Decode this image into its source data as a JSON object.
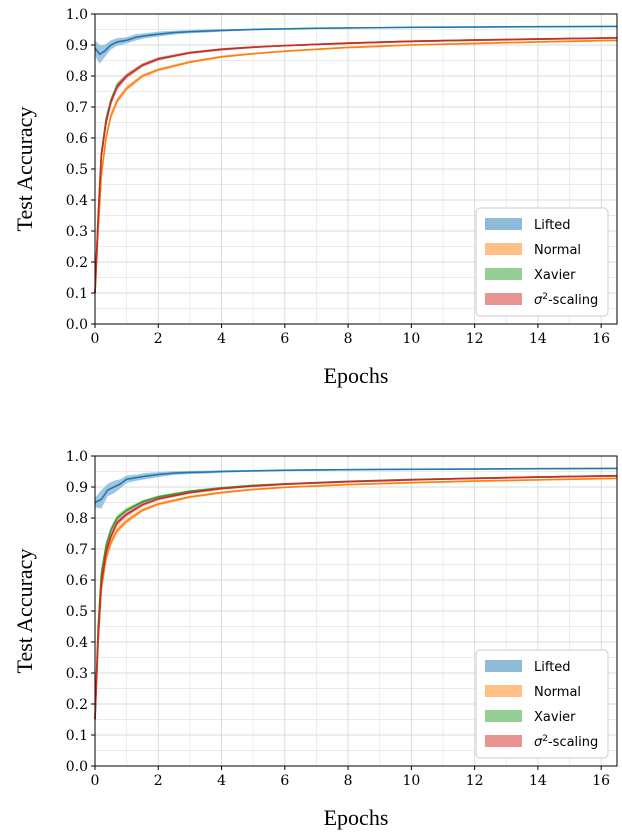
{
  "chart_data": [
    {
      "type": "line",
      "xlabel": "Epochs",
      "ylabel": "Test Accuracy",
      "xlim": [
        0,
        16.5
      ],
      "ylim": [
        0,
        1.0
      ],
      "xticks": [
        "0",
        "2",
        "4",
        "6",
        "8",
        "10",
        "12",
        "14",
        "16"
      ],
      "yticks": [
        "0.0",
        "0.1",
        "0.2",
        "0.3",
        "0.4",
        "0.5",
        "0.6",
        "0.7",
        "0.8",
        "0.9",
        "1.0"
      ],
      "grid": true,
      "legend_position": "bottom-right",
      "series": [
        {
          "name": "Lifted",
          "color": "#1f77b4",
          "band_color": "#8fbbd9",
          "x": [
            0,
            0.15,
            0.3,
            0.5,
            0.7,
            1.0,
            1.3,
            1.6,
            2.0,
            2.5,
            3.0,
            3.5,
            4,
            5,
            6,
            7,
            8,
            10,
            12,
            14,
            16.5
          ],
          "y": [
            0.89,
            0.87,
            0.88,
            0.9,
            0.91,
            0.915,
            0.925,
            0.93,
            0.935,
            0.94,
            0.943,
            0.945,
            0.947,
            0.95,
            0.952,
            0.954,
            0.955,
            0.957,
            0.958,
            0.959,
            0.96
          ],
          "band": [
            0.025,
            0.03,
            0.02,
            0.015,
            0.012,
            0.01,
            0.01,
            0.008,
            0.008,
            0.006,
            0.005,
            0.005,
            0.004,
            0.003,
            0.003,
            0.003,
            0.002,
            0.002,
            0.002,
            0.002,
            0.002
          ]
        },
        {
          "name": "Normal",
          "color": "#ff7f0e",
          "band_color": "#ffbf86",
          "x": [
            0,
            0.1,
            0.2,
            0.35,
            0.5,
            0.7,
            1.0,
            1.5,
            2.0,
            3.0,
            4,
            5,
            6,
            8,
            10,
            12,
            14,
            16.5
          ],
          "y": [
            0.1,
            0.3,
            0.48,
            0.6,
            0.67,
            0.72,
            0.76,
            0.8,
            0.82,
            0.845,
            0.862,
            0.872,
            0.88,
            0.892,
            0.9,
            0.905,
            0.91,
            0.915
          ],
          "band": [
            0.01,
            0.02,
            0.02,
            0.015,
            0.012,
            0.01,
            0.008,
            0.006,
            0.005,
            0.004,
            0.004,
            0.003,
            0.003,
            0.003,
            0.003,
            0.003,
            0.003,
            0.003
          ]
        },
        {
          "name": "Xavier",
          "color": "#2ca02c",
          "band_color": "#95cf95",
          "x": [
            0,
            0.1,
            0.2,
            0.35,
            0.5,
            0.7,
            1.0,
            1.5,
            2.0,
            3.0,
            4,
            5,
            6,
            8,
            10,
            12,
            14,
            16.5
          ],
          "y": [
            0.1,
            0.35,
            0.55,
            0.66,
            0.72,
            0.77,
            0.8,
            0.835,
            0.855,
            0.875,
            0.886,
            0.893,
            0.898,
            0.906,
            0.912,
            0.916,
            0.919,
            0.923
          ],
          "band": [
            0.01,
            0.02,
            0.02,
            0.015,
            0.012,
            0.01,
            0.008,
            0.006,
            0.005,
            0.004,
            0.004,
            0.003,
            0.003,
            0.003,
            0.003,
            0.003,
            0.003,
            0.003
          ]
        },
        {
          "name": "σ2-scaling",
          "color": "#d62728",
          "band_color": "#ea9393",
          "x": [
            0,
            0.1,
            0.2,
            0.35,
            0.5,
            0.7,
            1.0,
            1.5,
            2.0,
            3.0,
            4,
            5,
            6,
            8,
            10,
            12,
            14,
            16.5
          ],
          "y": [
            0.1,
            0.34,
            0.54,
            0.65,
            0.715,
            0.765,
            0.8,
            0.835,
            0.855,
            0.875,
            0.886,
            0.893,
            0.898,
            0.906,
            0.912,
            0.916,
            0.919,
            0.923
          ],
          "band": [
            0.01,
            0.02,
            0.02,
            0.015,
            0.012,
            0.01,
            0.008,
            0.006,
            0.005,
            0.004,
            0.004,
            0.003,
            0.003,
            0.003,
            0.003,
            0.003,
            0.003,
            0.003
          ]
        }
      ]
    },
    {
      "type": "line",
      "xlabel": "Epochs",
      "ylabel": "Test Accuracy",
      "xlim": [
        0,
        16.5
      ],
      "ylim": [
        0,
        1.0
      ],
      "xticks": [
        "0",
        "2",
        "4",
        "6",
        "8",
        "10",
        "12",
        "14",
        "16"
      ],
      "yticks": [
        "0.0",
        "0.1",
        "0.2",
        "0.3",
        "0.4",
        "0.5",
        "0.6",
        "0.7",
        "0.8",
        "0.9",
        "1.0"
      ],
      "grid": true,
      "legend_position": "bottom-right",
      "series": [
        {
          "name": "Lifted",
          "color": "#1f77b4",
          "band_color": "#8fbbd9",
          "x": [
            0,
            0.2,
            0.4,
            0.6,
            0.8,
            1.0,
            1.3,
            1.6,
            2.0,
            2.5,
            3.0,
            3.5,
            4,
            5,
            6,
            7,
            8,
            10,
            12,
            14,
            16.5
          ],
          "y": [
            0.85,
            0.86,
            0.89,
            0.9,
            0.91,
            0.925,
            0.93,
            0.935,
            0.94,
            0.945,
            0.947,
            0.948,
            0.95,
            0.952,
            0.954,
            0.955,
            0.956,
            0.957,
            0.958,
            0.959,
            0.96
          ],
          "band": [
            0.015,
            0.03,
            0.02,
            0.02,
            0.015,
            0.012,
            0.01,
            0.01,
            0.008,
            0.006,
            0.005,
            0.005,
            0.004,
            0.003,
            0.003,
            0.003,
            0.002,
            0.002,
            0.002,
            0.002,
            0.002
          ]
        },
        {
          "name": "Normal",
          "color": "#ff7f0e",
          "band_color": "#ffbf86",
          "x": [
            0,
            0.1,
            0.2,
            0.35,
            0.5,
            0.7,
            1.0,
            1.5,
            2.0,
            3.0,
            4,
            5,
            6,
            8,
            10,
            12,
            14,
            16.5
          ],
          "y": [
            0.15,
            0.4,
            0.57,
            0.67,
            0.72,
            0.76,
            0.79,
            0.825,
            0.845,
            0.868,
            0.882,
            0.892,
            0.899,
            0.908,
            0.914,
            0.919,
            0.923,
            0.928
          ],
          "band": [
            0.01,
            0.02,
            0.02,
            0.015,
            0.012,
            0.01,
            0.008,
            0.006,
            0.005,
            0.004,
            0.004,
            0.003,
            0.003,
            0.003,
            0.003,
            0.003,
            0.003,
            0.003
          ]
        },
        {
          "name": "Xavier",
          "color": "#2ca02c",
          "band_color": "#95cf95",
          "x": [
            0,
            0.1,
            0.2,
            0.35,
            0.5,
            0.7,
            1.0,
            1.5,
            2.0,
            3.0,
            4,
            5,
            6,
            8,
            10,
            12,
            14,
            16.5
          ],
          "y": [
            0.15,
            0.45,
            0.62,
            0.71,
            0.76,
            0.8,
            0.825,
            0.852,
            0.868,
            0.886,
            0.897,
            0.905,
            0.91,
            0.918,
            0.924,
            0.928,
            0.932,
            0.936
          ],
          "band": [
            0.01,
            0.02,
            0.02,
            0.015,
            0.012,
            0.01,
            0.008,
            0.006,
            0.005,
            0.004,
            0.004,
            0.003,
            0.003,
            0.003,
            0.003,
            0.003,
            0.003,
            0.003
          ]
        },
        {
          "name": "σ2-scaling",
          "color": "#d62728",
          "band_color": "#ea9393",
          "x": [
            0,
            0.1,
            0.2,
            0.35,
            0.5,
            0.7,
            1.0,
            1.5,
            2.0,
            3.0,
            4,
            5,
            6,
            8,
            10,
            12,
            14,
            16.5
          ],
          "y": [
            0.15,
            0.42,
            0.59,
            0.69,
            0.74,
            0.785,
            0.812,
            0.843,
            0.862,
            0.882,
            0.895,
            0.903,
            0.909,
            0.917,
            0.923,
            0.928,
            0.932,
            0.936
          ],
          "band": [
            0.01,
            0.02,
            0.02,
            0.015,
            0.012,
            0.01,
            0.008,
            0.006,
            0.005,
            0.004,
            0.004,
            0.003,
            0.003,
            0.003,
            0.003,
            0.003,
            0.003,
            0.003
          ]
        }
      ]
    }
  ]
}
